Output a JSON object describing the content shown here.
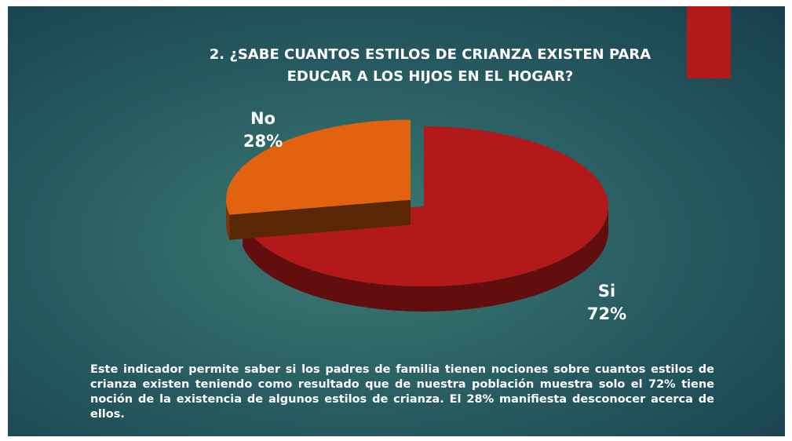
{
  "chart_data": {
    "type": "pie",
    "title": [
      "2. ¿SABE CUANTOS ESTILOS DE CRIANZA EXISTEN PARA",
      "EDUCAR A LOS HIJOS EN EL HOGAR?"
    ],
    "categories": [
      "Si",
      "No"
    ],
    "values": [
      72,
      28
    ],
    "value_labels": [
      "72%",
      "28%"
    ],
    "colors": [
      "#b3191a",
      "#e2620f"
    ],
    "annotations": [
      "Este indicador permite saber si los padres de familia tienen nociones sobre cuantos estilos de crianza existen teniendo como resultado que de nuestra población muestra solo el 72% tiene noción de la existencia de algunos estilos de crianza. El 28% manifiesta desconocer acerca de ellos."
    ]
  }
}
